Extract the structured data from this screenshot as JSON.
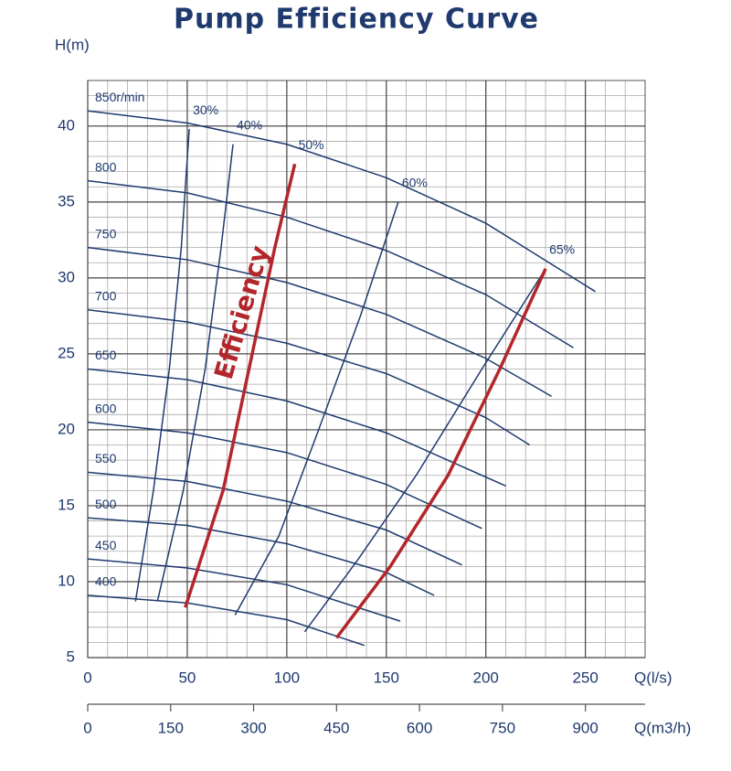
{
  "chart_data": {
    "type": "line",
    "title": "Pump Efficiency Curve",
    "y_label": "H(m)",
    "x_label": "Q(l/s)",
    "x2_label": "Q(m3/h)",
    "annotation": "Efficiency",
    "xlim": [
      0,
      280
    ],
    "ylim": [
      5,
      43
    ],
    "x2lim": [
      0,
      1008
    ],
    "xticks": [
      0,
      50,
      100,
      150,
      200,
      250
    ],
    "yticks": [
      5,
      10,
      15,
      20,
      25,
      30,
      35,
      40
    ],
    "x2ticks": [
      0,
      150,
      300,
      450,
      600,
      750,
      900
    ],
    "grid": true,
    "minor_grid": {
      "x": 10,
      "y": 1
    },
    "series": [
      {
        "name": "850r/min",
        "color": "#1f3a6e",
        "x": [
          0,
          50,
          100,
          150,
          200,
          255
        ],
        "values": [
          41.0,
          40.2,
          38.8,
          36.6,
          33.6,
          29.1
        ]
      },
      {
        "name": "800",
        "color": "#1f3a6e",
        "x": [
          0,
          50,
          100,
          150,
          200,
          244
        ],
        "values": [
          36.4,
          35.6,
          34.0,
          31.8,
          28.9,
          25.4
        ]
      },
      {
        "name": "750",
        "color": "#1f3a6e",
        "x": [
          0,
          50,
          100,
          150,
          200,
          233
        ],
        "values": [
          32.0,
          31.2,
          29.7,
          27.6,
          24.7,
          22.2
        ]
      },
      {
        "name": "700",
        "color": "#1f3a6e",
        "x": [
          0,
          50,
          100,
          150,
          200,
          222
        ],
        "values": [
          27.9,
          27.1,
          25.7,
          23.7,
          20.8,
          19.0
        ]
      },
      {
        "name": "650",
        "color": "#1f3a6e",
        "x": [
          0,
          50,
          100,
          150,
          210
        ],
        "values": [
          24.0,
          23.3,
          21.9,
          19.8,
          16.3
        ]
      },
      {
        "name": "600",
        "color": "#1f3a6e",
        "x": [
          0,
          50,
          100,
          150,
          198
        ],
        "values": [
          20.5,
          19.8,
          18.5,
          16.4,
          13.5
        ]
      },
      {
        "name": "550",
        "color": "#1f3a6e",
        "x": [
          0,
          50,
          100,
          150,
          188
        ],
        "values": [
          17.2,
          16.6,
          15.3,
          13.4,
          11.1
        ]
      },
      {
        "name": "500",
        "color": "#1f3a6e",
        "x": [
          0,
          50,
          100,
          150,
          174
        ],
        "values": [
          14.2,
          13.7,
          12.5,
          10.6,
          9.1
        ]
      },
      {
        "name": "450",
        "color": "#1f3a6e",
        "x": [
          0,
          50,
          100,
          157
        ],
        "values": [
          11.5,
          10.9,
          9.8,
          7.4
        ]
      },
      {
        "name": "400",
        "color": "#1f3a6e",
        "x": [
          0,
          50,
          100,
          139
        ],
        "values": [
          9.1,
          8.6,
          7.5,
          5.8
        ]
      }
    ],
    "efficiency_curves": [
      {
        "name": "30%",
        "color": "#1f3a6e",
        "x": [
          24,
          33,
          41,
          47,
          51
        ],
        "values": [
          8.7,
          16,
          24,
          32,
          39.8
        ]
      },
      {
        "name": "40%",
        "color": "#1f3a6e",
        "x": [
          35,
          48,
          59,
          67,
          73
        ],
        "values": [
          8.7,
          16,
          24,
          32,
          38.8
        ]
      },
      {
        "name": "50%",
        "color": "#b3262b",
        "x": [
          49,
          68,
          81,
          94,
          104
        ],
        "values": [
          8.3,
          16,
          24,
          32,
          37.5
        ]
      },
      {
        "name": "60%",
        "color": "#1f3a6e",
        "x": [
          74,
          96,
          116,
          137,
          156
        ],
        "values": [
          7.8,
          13,
          20,
          27.5,
          35
        ]
      },
      {
        "name": "65%",
        "color": "#1f3a6e",
        "x": [
          109,
          136,
          165,
          198,
          230
        ],
        "values": [
          6.7,
          11.5,
          17,
          24,
          30.6
        ]
      },
      {
        "color": "#b3262b",
        "x": [
          125,
          152,
          181,
          207,
          230
        ],
        "values": [
          6.3,
          11,
          17,
          24,
          30.6
        ]
      }
    ]
  }
}
